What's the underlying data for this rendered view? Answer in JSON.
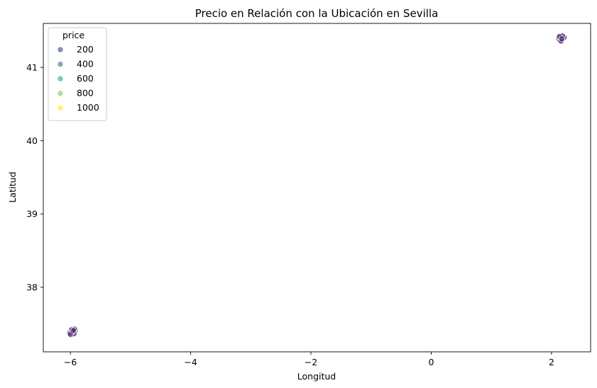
{
  "chart_data": {
    "type": "scatter",
    "title": "Precio en Relación con la Ubicación en Sevilla",
    "xlabel": "Longitud",
    "ylabel": "Latitud",
    "xlim": [
      -6.45,
      2.65
    ],
    "ylim": [
      37.12,
      41.6
    ],
    "xticks": [
      -6,
      -4,
      -2,
      0,
      2
    ],
    "yticks": [
      38,
      39,
      40,
      41
    ],
    "grid": false,
    "legend": {
      "title": "price",
      "placement": "top-left",
      "entries": [
        {
          "label": "200",
          "color": "#433e85"
        },
        {
          "label": "400",
          "color": "#2c728e"
        },
        {
          "label": "600",
          "color": "#21a685"
        },
        {
          "label": "800",
          "color": "#7ad151"
        },
        {
          "label": "1000",
          "color": "#fde725"
        }
      ]
    },
    "series": [
      {
        "points": [
          [
            -5.99,
            37.39,
            90
          ],
          [
            -5.97,
            37.41,
            120
          ],
          [
            -5.95,
            37.4,
            80
          ],
          [
            -5.98,
            37.37,
            150
          ],
          [
            -5.96,
            37.38,
            70
          ],
          [
            -5.94,
            37.42,
            110
          ],
          [
            -6.0,
            37.4,
            60
          ],
          [
            -5.93,
            37.39,
            95
          ],
          [
            -5.99,
            37.35,
            130
          ],
          [
            -5.97,
            37.43,
            85
          ],
          [
            -5.95,
            37.36,
            75
          ],
          [
            -5.92,
            37.41,
            100
          ],
          [
            -6.01,
            37.38,
            140
          ],
          [
            -5.96,
            37.4,
            65
          ],
          [
            -5.98,
            37.42,
            105
          ],
          [
            -5.94,
            37.37,
            90
          ],
          [
            -5.97,
            37.39,
            55
          ],
          [
            -5.93,
            37.43,
            115
          ],
          [
            -6.0,
            37.36,
            80
          ],
          [
            -5.95,
            37.41,
            70
          ],
          [
            2.16,
            41.39,
            120
          ],
          [
            2.18,
            41.41,
            90
          ],
          [
            2.14,
            41.4,
            150
          ],
          [
            2.17,
            41.37,
            80
          ],
          [
            2.19,
            41.42,
            110
          ],
          [
            2.15,
            41.38,
            70
          ],
          [
            2.2,
            41.4,
            130
          ],
          [
            2.13,
            41.41,
            95
          ],
          [
            2.16,
            41.43,
            85
          ],
          [
            2.18,
            41.38,
            100
          ],
          [
            2.12,
            41.39,
            75
          ],
          [
            2.17,
            41.4,
            60
          ],
          [
            2.15,
            41.42,
            140
          ],
          [
            2.19,
            41.39,
            90
          ],
          [
            2.14,
            41.37,
            110
          ],
          [
            2.21,
            41.41,
            80
          ],
          [
            2.16,
            41.36,
            65
          ],
          [
            2.18,
            41.43,
            105
          ],
          [
            2.13,
            41.42,
            70
          ],
          [
            2.17,
            41.39,
            120
          ]
        ]
      }
    ],
    "colormap": "viridis",
    "price_range": [
      0,
      1050
    ]
  }
}
